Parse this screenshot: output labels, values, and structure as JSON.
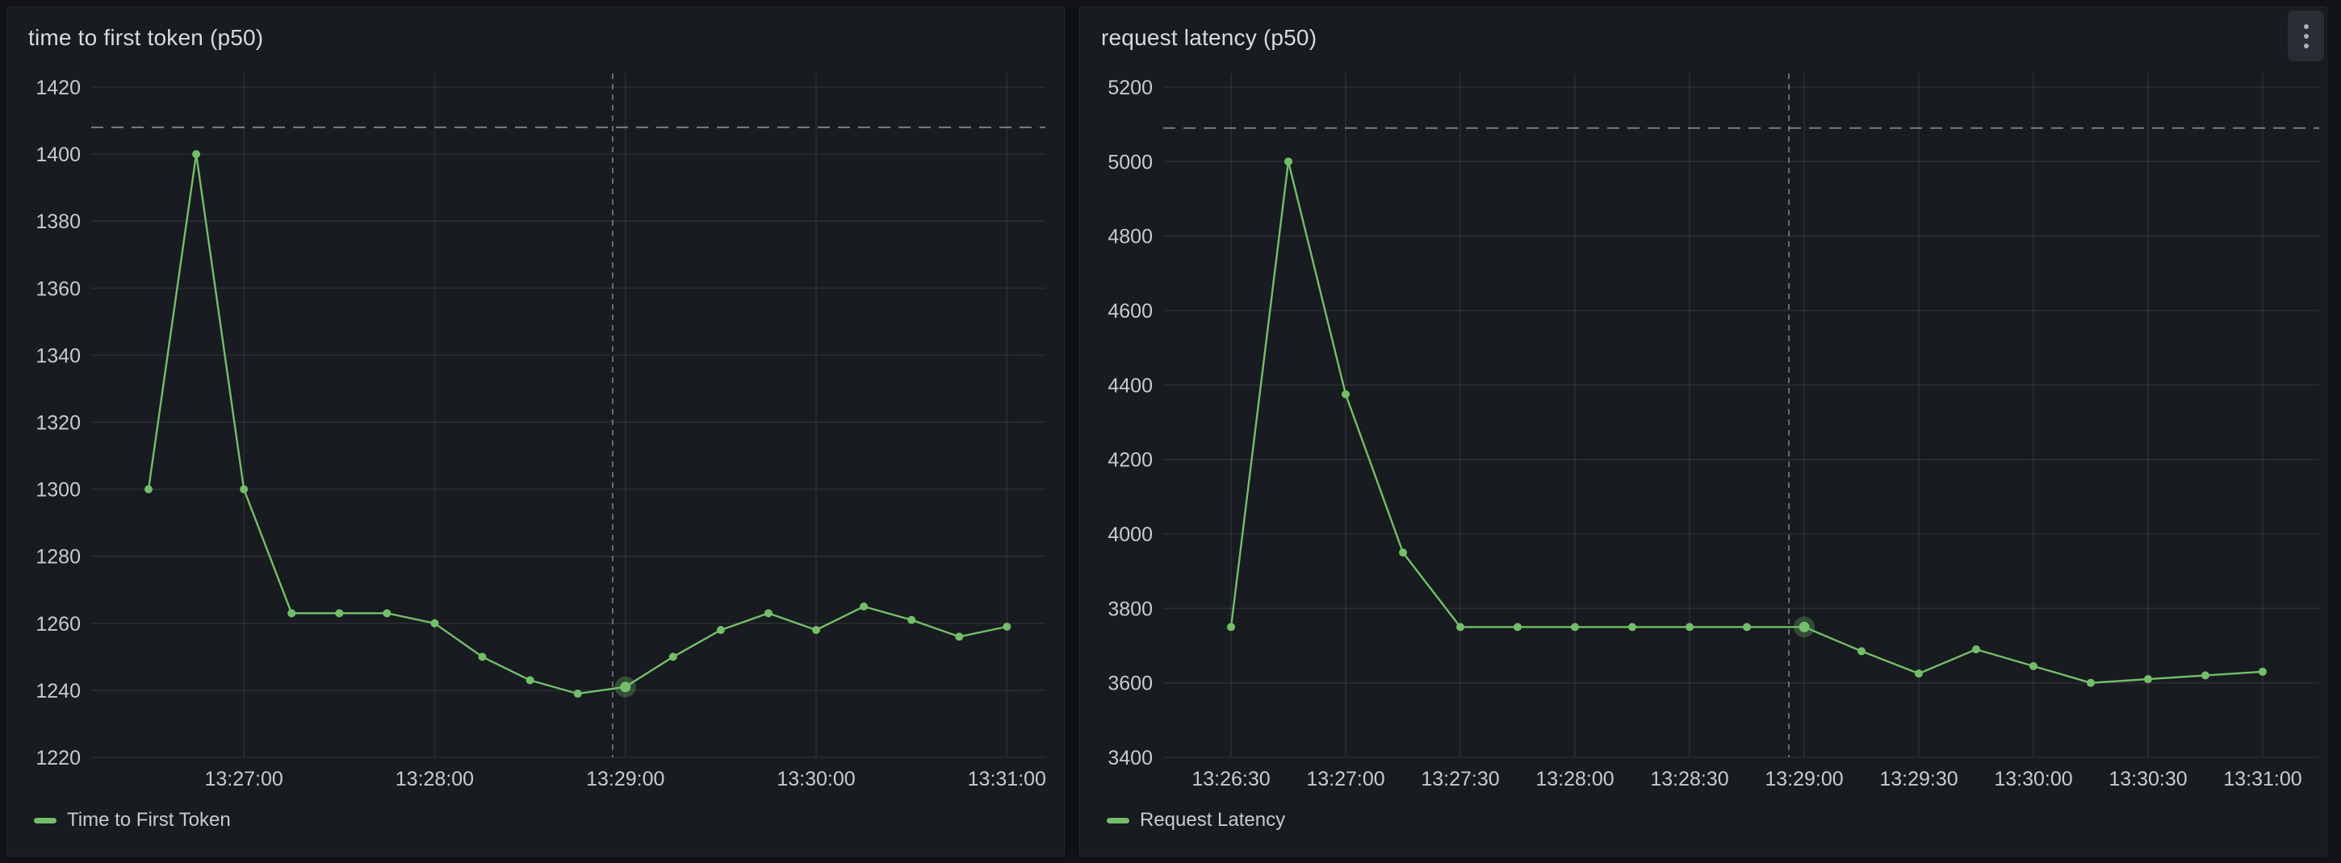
{
  "page": {
    "background": "#111217",
    "panel_background": "#181b1f"
  },
  "panels": [
    {
      "id": "ttft",
      "title": "time to first token (p50)",
      "legend": {
        "label": "Time to First Token",
        "color": "#73BF69"
      },
      "menu_visible": false,
      "chart_data": {
        "type": "line",
        "series_name": "Time to First Token",
        "color": "#73BF69",
        "x": [
          "13:26:30",
          "13:26:45",
          "13:27:00",
          "13:27:15",
          "13:27:30",
          "13:27:45",
          "13:28:00",
          "13:28:15",
          "13:28:30",
          "13:28:45",
          "13:29:00",
          "13:29:15",
          "13:29:30",
          "13:29:45",
          "13:30:00",
          "13:30:15",
          "13:30:30",
          "13:30:45",
          "13:31:00"
        ],
        "values": [
          1300,
          1400,
          1300,
          1263,
          1263,
          1263,
          1260,
          1250,
          1243,
          1239,
          1241,
          1250,
          1258,
          1263,
          1258,
          1265,
          1261,
          1256,
          1259
        ],
        "ylim": [
          1220,
          1420
        ],
        "y_tick_step": 20,
        "x_tick_labels": [
          "13:27:00",
          "13:28:00",
          "13:29:00",
          "13:30:00",
          "13:31:00"
        ],
        "threshold_value": 1408,
        "threshold_style": "dashed",
        "highlight_index": 10,
        "crosshair_time": "13:28:56",
        "grid": true,
        "legend_position": "bottom-left"
      }
    },
    {
      "id": "latency",
      "title": "request latency (p50)",
      "legend": {
        "label": "Request Latency",
        "color": "#73BF69"
      },
      "menu_visible": true,
      "menu_icon": "kebab-vertical-icon",
      "chart_data": {
        "type": "line",
        "series_name": "Request Latency",
        "color": "#73BF69",
        "x": [
          "13:26:30",
          "13:26:45",
          "13:27:00",
          "13:27:15",
          "13:27:30",
          "13:27:45",
          "13:28:00",
          "13:28:15",
          "13:28:30",
          "13:28:45",
          "13:29:00",
          "13:29:15",
          "13:29:30",
          "13:29:45",
          "13:30:00",
          "13:30:15",
          "13:30:30",
          "13:30:45",
          "13:31:00"
        ],
        "values": [
          3750,
          5000,
          4375,
          3950,
          3750,
          3750,
          3750,
          3750,
          3750,
          3750,
          3750,
          3685,
          3625,
          3690,
          3645,
          3600,
          3610,
          3620,
          3630
        ],
        "ylim": [
          3400,
          5200
        ],
        "y_tick_step": 200,
        "x_tick_labels": [
          "13:26:30",
          "13:27:00",
          "13:27:30",
          "13:28:00",
          "13:28:30",
          "13:29:00",
          "13:29:30",
          "13:30:00",
          "13:30:30",
          "13:31:00"
        ],
        "threshold_value": 5090,
        "threshold_style": "dashed",
        "highlight_index": 10,
        "crosshair_time": "13:28:56",
        "grid": true,
        "legend_position": "bottom-left"
      }
    }
  ]
}
